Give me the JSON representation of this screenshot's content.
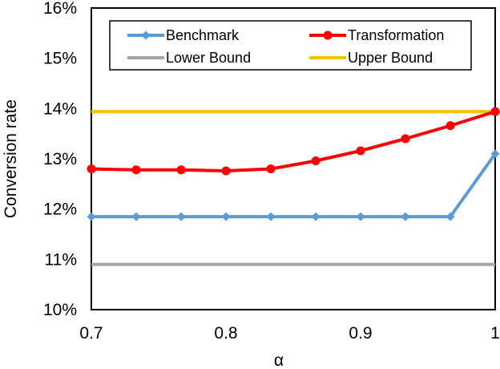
{
  "chart_data": {
    "type": "line",
    "title": "",
    "xlabel": "α",
    "ylabel": "Conversion rate",
    "xlim": [
      0.7,
      1.0
    ],
    "ylim": [
      0.1,
      0.16
    ],
    "x_ticks": [
      0.7,
      0.8,
      0.9,
      1.0
    ],
    "x_tick_labels": [
      "0.7",
      "0.8",
      "0.9",
      "1"
    ],
    "y_ticks": [
      0.1,
      0.11,
      0.12,
      0.13,
      0.14,
      0.15,
      0.16
    ],
    "y_tick_labels": [
      "10%",
      "11%",
      "12%",
      "13%",
      "14%",
      "15%",
      "16%"
    ],
    "grid": false,
    "legend_position": "top",
    "x": [
      0.7,
      0.7333,
      0.7667,
      0.8,
      0.8333,
      0.8667,
      0.9,
      0.9333,
      0.9667,
      1.0
    ],
    "series": [
      {
        "name": "Benchmark",
        "color": "#5b9bd5",
        "marker": "diamond",
        "values": [
          0.1185,
          0.1185,
          0.1185,
          0.1185,
          0.1185,
          0.1185,
          0.1185,
          0.1185,
          0.1185,
          0.131
        ]
      },
      {
        "name": "Transformation",
        "color": "#ff0000",
        "marker": "circle",
        "values": [
          0.128,
          0.1278,
          0.1278,
          0.1276,
          0.128,
          0.1296,
          0.1316,
          0.134,
          0.1366,
          0.1394
        ]
      },
      {
        "name": "Lower Bound",
        "color": "#a5a5a5",
        "marker": "none",
        "values": [
          0.109,
          0.109,
          0.109,
          0.109,
          0.109,
          0.109,
          0.109,
          0.109,
          0.109,
          0.109
        ]
      },
      {
        "name": "Upper Bound",
        "color": "#ffc000",
        "marker": "none",
        "values": [
          0.1394,
          0.1394,
          0.1394,
          0.1394,
          0.1394,
          0.1394,
          0.1394,
          0.1394,
          0.1394,
          0.1394
        ]
      }
    ]
  }
}
